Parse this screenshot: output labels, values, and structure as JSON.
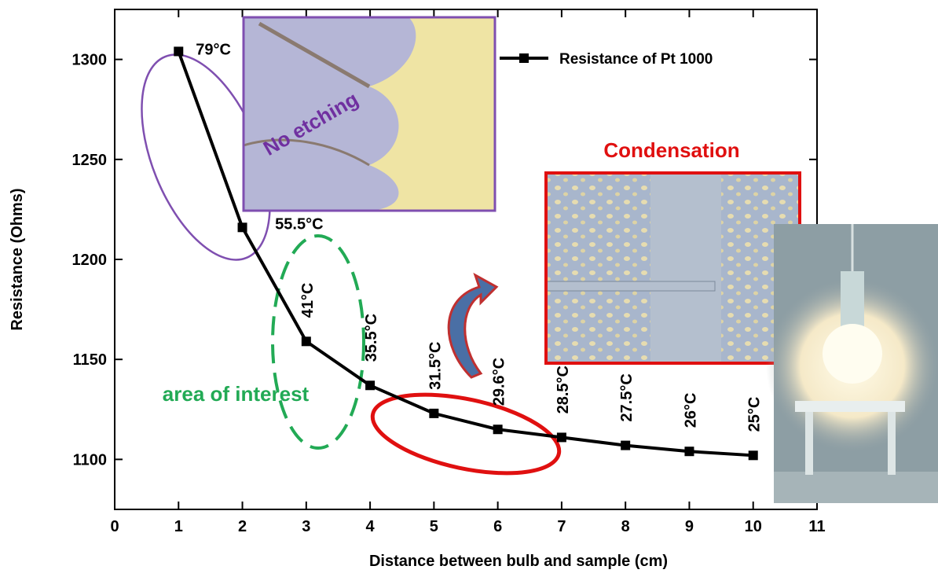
{
  "chart_data": {
    "type": "line",
    "x_label": "Distance between bulb and sample (cm)",
    "y_label": "Resistance (Ohms)",
    "x": [
      1,
      2,
      3,
      4,
      5,
      6,
      7,
      8,
      9,
      10
    ],
    "series": [
      {
        "name": "Resistance of Pt 1000",
        "color": "#000000",
        "values": [
          1304,
          1216,
          1159,
          1137,
          1123,
          1115,
          1111,
          1107,
          1104,
          1102
        ],
        "value_labels": [
          "79°C",
          "55.5°C",
          "41°C",
          "35.5°C",
          "31.5°C",
          "29.6°C",
          "28.5°C",
          "27.5°C",
          "26°C",
          "25°C"
        ]
      }
    ],
    "xlim": [
      0,
      11
    ],
    "xticks": [
      0,
      1,
      2,
      3,
      4,
      5,
      6,
      7,
      8,
      9,
      10,
      11
    ],
    "ylim": [
      1075,
      1325
    ],
    "yticks": [
      1100,
      1150,
      1200,
      1250,
      1300
    ],
    "annotations": [
      "No etching",
      "Condensation",
      "area of interest"
    ]
  }
}
